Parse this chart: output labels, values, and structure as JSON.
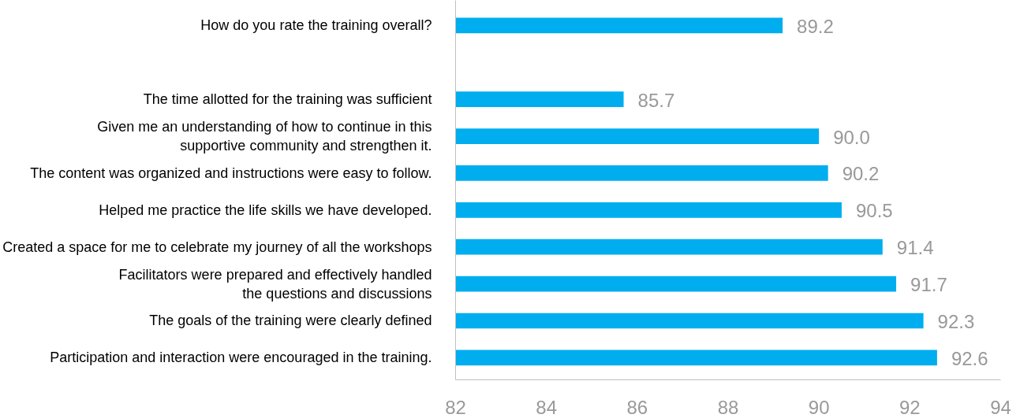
{
  "chart_data": {
    "type": "bar",
    "orientation": "horizontal",
    "categories": [
      "How do you rate the training overall?",
      null,
      "The time allotted for the training was sufficient",
      "Given me an understanding of how to continue in this\nsupportive community and strengthen it.",
      "The content was organized and instructions were easy to follow.",
      "Helped me practice the life skills we have developed.",
      "Created a space for me to celebrate my journey of all the workshops",
      "Facilitators were prepared and effectively handled\nthe questions and discussions",
      "The goals of the training were clearly defined",
      "Participation and interaction were encouraged in the training."
    ],
    "values": [
      89.2,
      null,
      85.7,
      90.0,
      90.2,
      90.5,
      91.4,
      91.7,
      92.3,
      92.6
    ],
    "value_labels": [
      "89.2",
      null,
      "85.7",
      "90.0",
      "90.2",
      "90.5",
      "91.4",
      "91.7",
      "92.3",
      "92.6"
    ],
    "color": "#00aeef",
    "xlim": [
      82,
      94
    ],
    "xticks": [
      82,
      84,
      86,
      88,
      90,
      92,
      94
    ],
    "grid": false
  }
}
